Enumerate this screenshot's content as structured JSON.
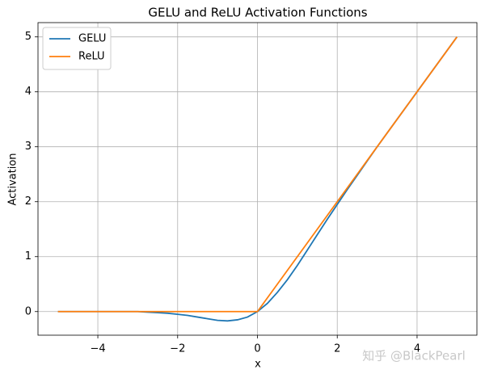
{
  "chart_data": {
    "type": "line",
    "title": "GELU and ReLU Activation Functions",
    "x_label": "x",
    "y_label": "Activation",
    "x": [
      -5,
      -4.75,
      -4.5,
      -4.25,
      -4,
      -3.75,
      -3.5,
      -3.25,
      -3,
      -2.75,
      -2.5,
      -2.25,
      -2,
      -1.75,
      -1.5,
      -1.25,
      -1,
      -0.75,
      -0.5,
      -0.25,
      0,
      0.25,
      0.5,
      0.75,
      1,
      1.25,
      1.5,
      1.75,
      2,
      2.25,
      2.5,
      2.75,
      3,
      3.25,
      3.5,
      3.75,
      4,
      4.25,
      4.5,
      4.75,
      5
    ],
    "series": [
      {
        "name": "GELU",
        "color": "#1f77b4",
        "values": [
          0,
          0,
          0,
          0,
          0,
          0,
          0,
          0,
          0,
          -0.01,
          -0.02,
          -0.03,
          -0.05,
          -0.07,
          -0.1,
          -0.13,
          -0.16,
          -0.17,
          -0.15,
          -0.1,
          0,
          0.15,
          0.35,
          0.58,
          0.84,
          1.12,
          1.4,
          1.68,
          1.95,
          2.22,
          2.48,
          2.74,
          3,
          3.25,
          3.5,
          3.75,
          4,
          4.25,
          4.5,
          4.75,
          5
        ]
      },
      {
        "name": "ReLU",
        "color": "#ff7f0e",
        "values": [
          0,
          0,
          0,
          0,
          0,
          0,
          0,
          0,
          0,
          0,
          0,
          0,
          0,
          0,
          0,
          0,
          0,
          0,
          0,
          0,
          0,
          0.25,
          0.5,
          0.75,
          1,
          1.25,
          1.5,
          1.75,
          2,
          2.25,
          2.5,
          2.75,
          3,
          3.25,
          3.5,
          3.75,
          4,
          4.25,
          4.5,
          4.75,
          5
        ]
      }
    ],
    "xlim": [
      -5.5,
      5.5
    ],
    "ylim": [
      -0.43,
      5.26
    ],
    "xticks": [
      {
        "value": -4,
        "label": "−4"
      },
      {
        "value": -2,
        "label": "−2"
      },
      0,
      2,
      4
    ],
    "yticks": [
      0,
      1,
      2,
      3,
      4,
      5
    ],
    "grid": true,
    "legend": "upper-left",
    "watermark": "知乎 @BlackPearl"
  }
}
